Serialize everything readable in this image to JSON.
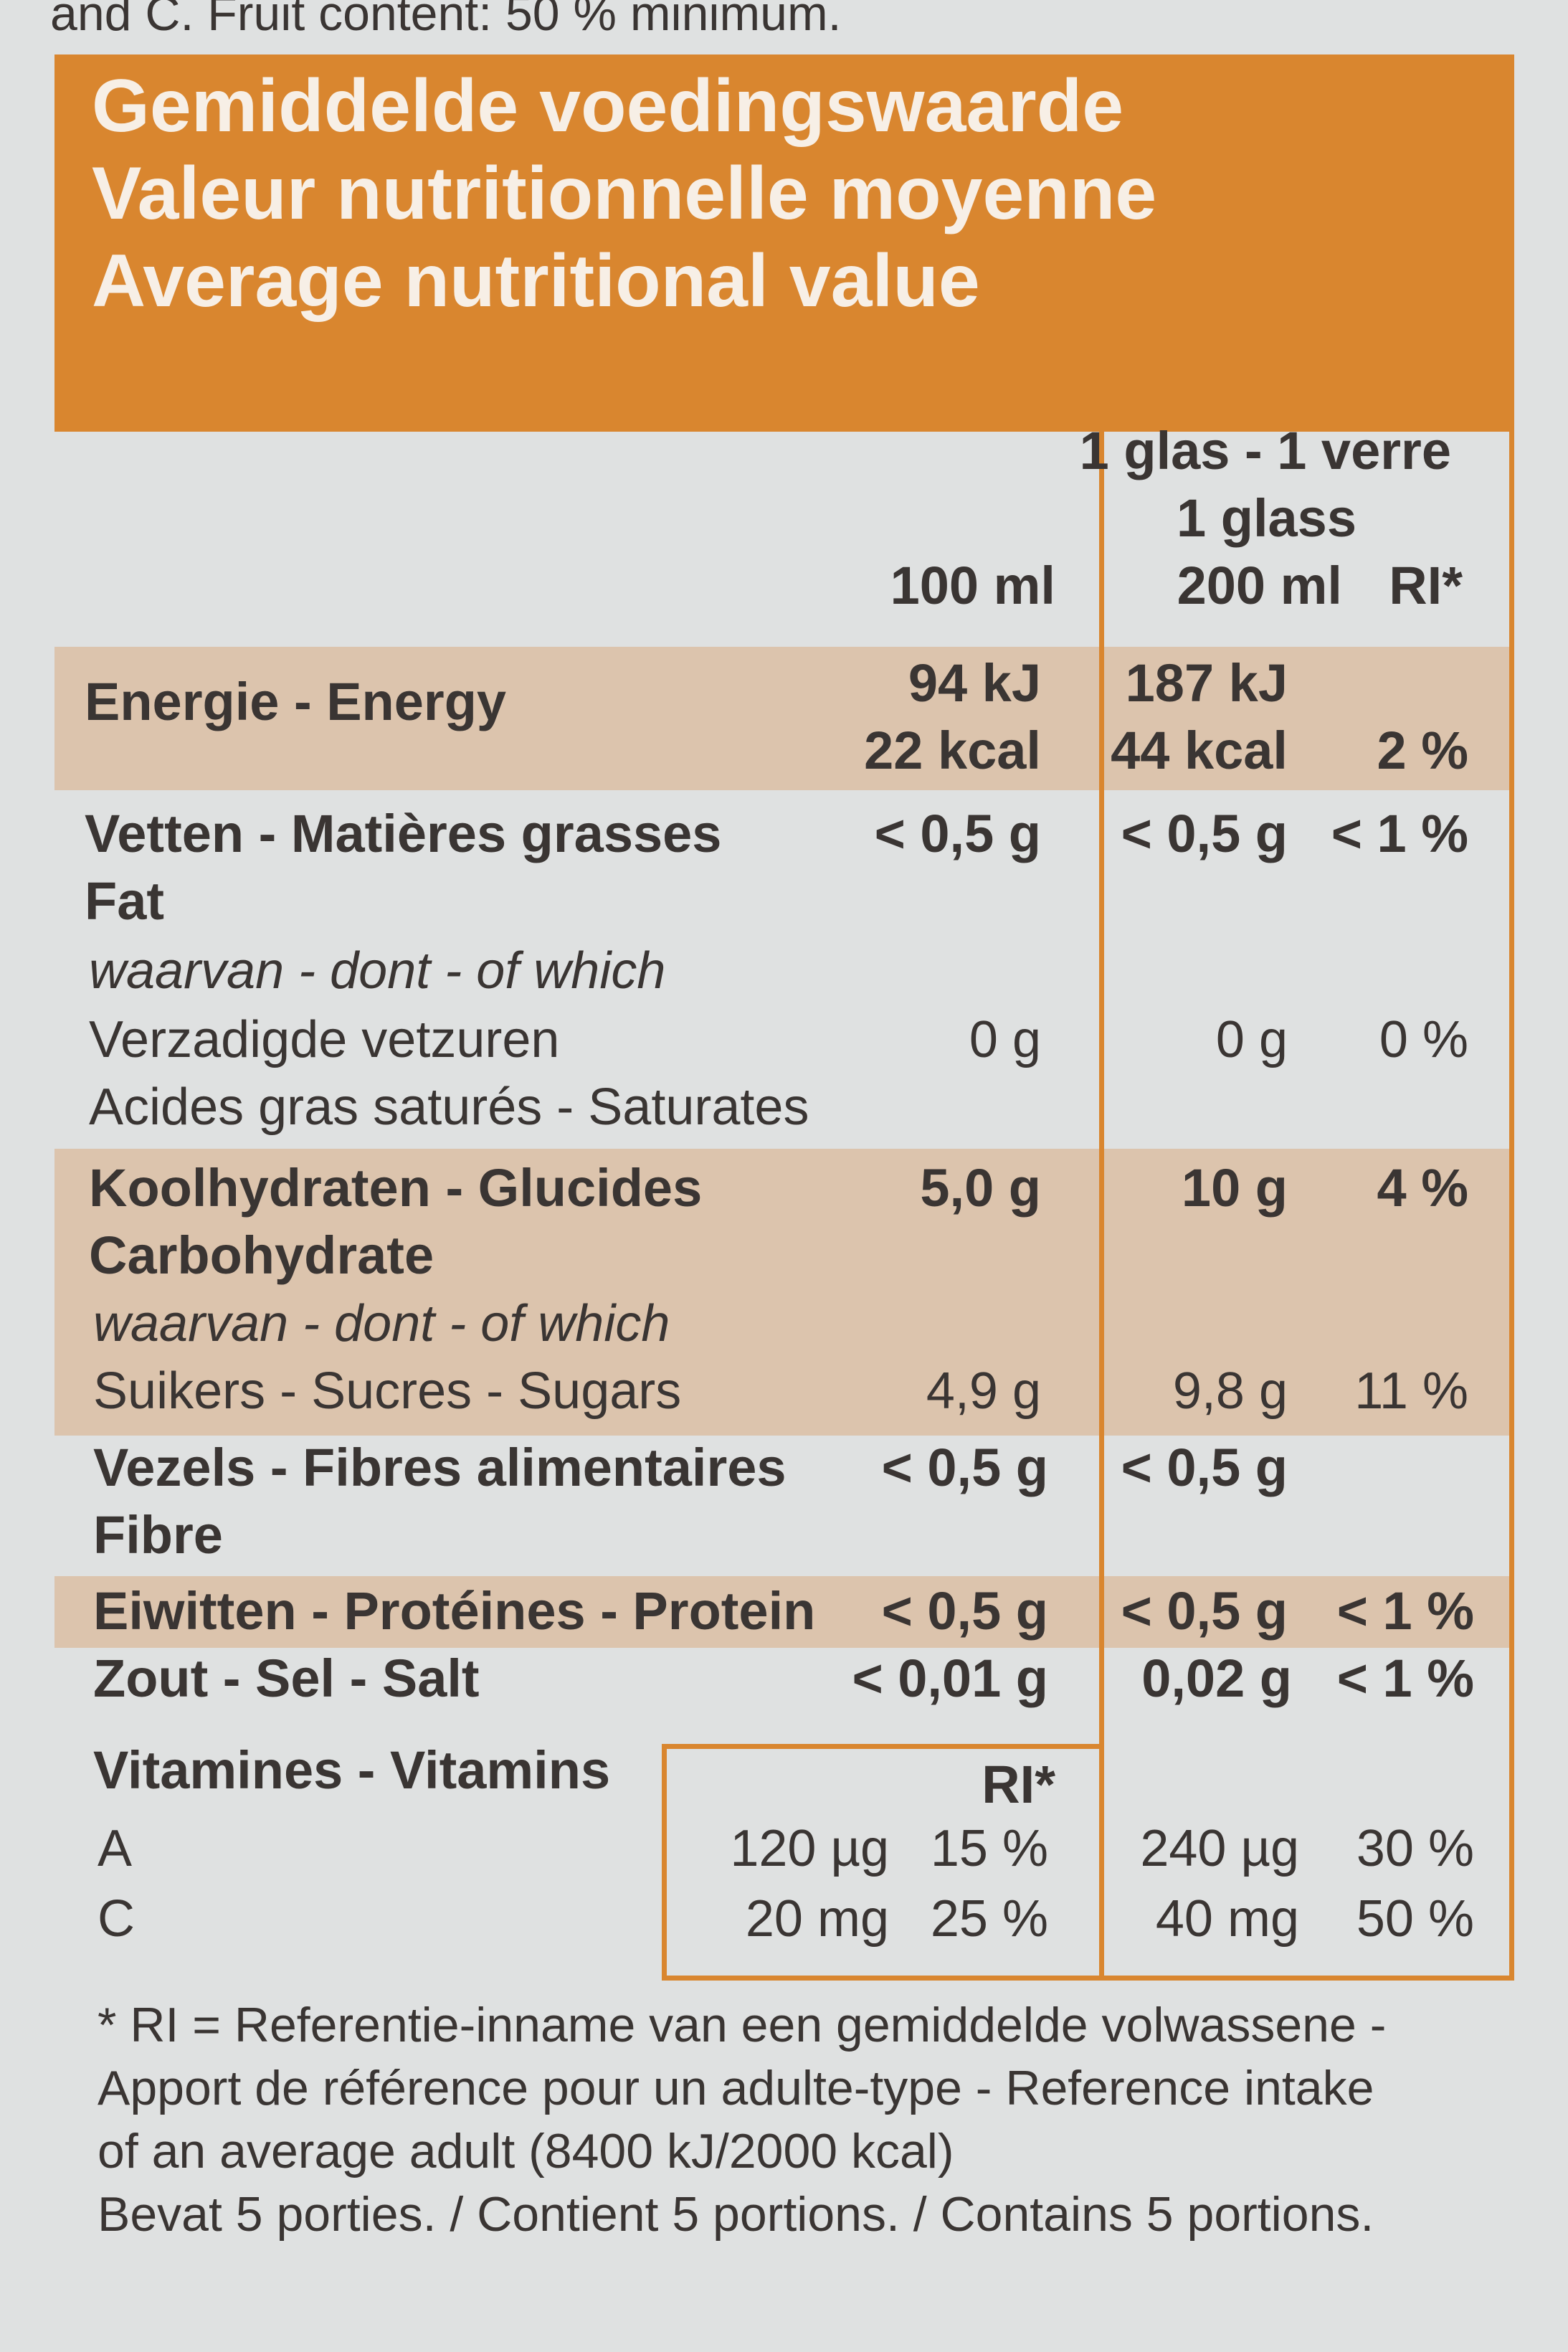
{
  "top_strip": "and C. Fruit content: 50 % minimum.",
  "header": {
    "nl": "Gemiddelde voedingswaarde",
    "fr": "Valeur nutritionnelle moyenne",
    "en": "Average nutritional value"
  },
  "columns": {
    "per_glass_line1": "1 glas - 1 verre",
    "per_glass_line2": "1 glass",
    "per_100": "100 ml",
    "per_200": "200 ml",
    "ri": "RI*"
  },
  "rows": {
    "energy": {
      "label": "Energie - Energy",
      "v100_kj": "94 kJ",
      "v100_kcal": "22 kcal",
      "v200_kj": "187 kJ",
      "v200_kcal": "44 kcal",
      "ri": "2 %"
    },
    "fat": {
      "label1": "Vetten - Matières grasses",
      "label2": "Fat",
      "v100": "< 0,5 g",
      "v200": "< 0,5 g",
      "ri": "< 1 %"
    },
    "fat_of_which": "waarvan - dont - of which",
    "saturates": {
      "label1": "Verzadigde vetzuren",
      "label2": "Acides gras saturés - Saturates",
      "v100": "0 g",
      "v200": "0 g",
      "ri": "0 %"
    },
    "carbs": {
      "label1": "Koolhydraten - Glucides",
      "label2": "Carbohydrate",
      "v100": "5,0 g",
      "v200": "10 g",
      "ri": "4 %"
    },
    "carbs_of_which": "waarvan - dont - of which",
    "sugars": {
      "label": "Suikers - Sucres - Sugars",
      "v100": "4,9 g",
      "v200": "9,8 g",
      "ri": "11 %"
    },
    "fibre": {
      "label1": "Vezels - Fibres alimentaires",
      "label2": "Fibre",
      "v100": "< 0,5 g",
      "v200": "< 0,5 g"
    },
    "protein": {
      "label": "Eiwitten - Protéines - Protein",
      "v100": "< 0,5 g",
      "v200": "< 0,5 g",
      "ri": "< 1 %"
    },
    "salt": {
      "label": "Zout - Sel - Salt",
      "v100": "< 0,01 g",
      "v200": "0,02 g",
      "ri": "< 1 %"
    },
    "vitamins": {
      "label": "Vitamines - Vitamins",
      "ri_header": "RI*",
      "a": {
        "label": "A",
        "v100": "120 µg",
        "ri100": "15 %",
        "v200": "240 µg",
        "ri200": "30 %"
      },
      "c": {
        "label": "C",
        "v100": "20 mg",
        "ri100": "25 %",
        "v200": "40 mg",
        "ri200": "50 %"
      }
    }
  },
  "footnote": {
    "line1": "* RI = Referentie-inname van een gemiddelde volwassene -",
    "line2": "Apport de référence pour un adulte-type - Reference intake",
    "line3": "of an average adult (8400 kJ/2000 kcal)",
    "line4": "Bevat 5 porties. / Contient 5 portions. / Contains 5 portions."
  },
  "colors": {
    "accent": "#d9862f",
    "shade": "#dcc4ad",
    "background": "#dfe1e1",
    "text": "#3a3533"
  }
}
